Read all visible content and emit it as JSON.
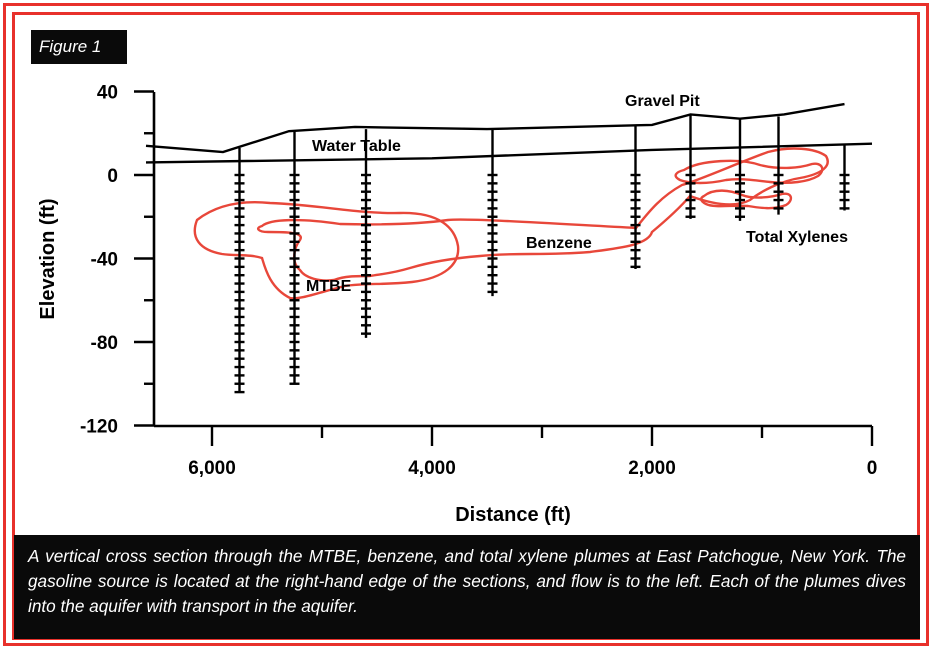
{
  "figure_label": "Figure 1",
  "caption": "A vertical cross section through the MTBE, benzene, and total xylene plumes at East Patchogue, New York. The gasoline source is located at the right-hand edge of the sections, and flow is to the left. Each of the plumes dives into the aquifer with transport in the aquifer.",
  "chart": {
    "xlabel": "Distance (ft)",
    "ylabel": "Elevation (ft)",
    "x_ticks": [
      {
        "value": 6000,
        "label": "6,000"
      },
      {
        "value": 4000,
        "label": "4,000"
      },
      {
        "value": 2000,
        "label": "2,000"
      },
      {
        "value": 0,
        "label": "0"
      }
    ],
    "y_ticks": [
      {
        "value": 40,
        "label": "40"
      },
      {
        "value": 0,
        "label": "0"
      },
      {
        "value": -40,
        "label": "-40"
      },
      {
        "value": -80,
        "label": "-80"
      },
      {
        "value": -120,
        "label": "-120"
      }
    ],
    "annotations": {
      "gravel_pit": "Gravel Pit",
      "water_table": "Water Table",
      "benzene": "Benzene",
      "mtbe": "MTBE",
      "total_xylenes": "Total Xylenes"
    },
    "colors": {
      "plume": "#e8473a",
      "frame": "#e8312b",
      "caption_bg": "#0a0a0a"
    }
  },
  "chart_data": {
    "type": "cross-section",
    "xlabel": "Distance (ft)",
    "ylabel": "Elevation (ft)",
    "xlim": [
      6600,
      0
    ],
    "ylim": [
      -120,
      40
    ],
    "ground_surface": {
      "x": [
        6600,
        5900,
        5300,
        4700,
        3500,
        2000,
        1650,
        1200,
        800,
        250
      ],
      "y": [
        14,
        11,
        21,
        23,
        22,
        24,
        29,
        27,
        29,
        34
      ]
    },
    "water_table": {
      "x": [
        6600,
        4000,
        2000,
        0
      ],
      "y": [
        6,
        8,
        12,
        15
      ]
    },
    "wells": [
      {
        "x": 5750,
        "top": 13,
        "bottom": -104
      },
      {
        "x": 5250,
        "top": 21,
        "bottom": -100
      },
      {
        "x": 4600,
        "top": 22,
        "bottom": -78
      },
      {
        "x": 3450,
        "top": 22,
        "bottom": -58
      },
      {
        "x": 2150,
        "top": 24,
        "bottom": -45
      },
      {
        "x": 1650,
        "top": 29,
        "bottom": -21
      },
      {
        "x": 1200,
        "top": 27,
        "bottom": -22
      },
      {
        "x": 850,
        "top": 28,
        "bottom": -19
      },
      {
        "x": 250,
        "top": 15,
        "bottom": -17
      }
    ]
  }
}
